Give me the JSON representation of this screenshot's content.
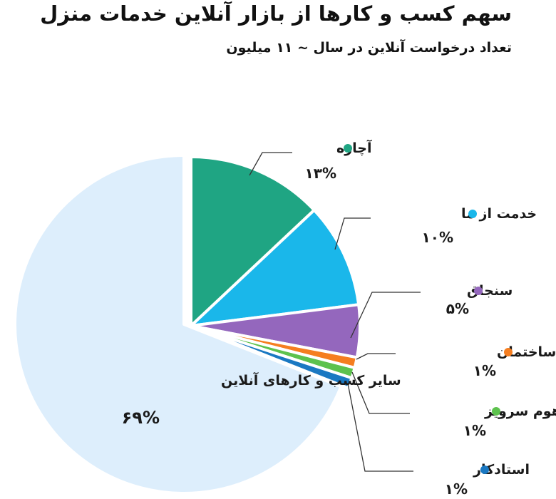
{
  "chart_data": {
    "type": "pie",
    "title": "سهم کسب و کارها از بازار آنلاین خدمات منزل",
    "subtitle": "تعداد درخواست آنلاین در سال ~ ۱۱ میلیون",
    "slices": [
      {
        "label": "آچاره",
        "value": 13,
        "display": "۱۳%",
        "color": "#1fa583",
        "exploded": true
      },
      {
        "label": "خدمت از ما",
        "value": 10,
        "display": "۱۰%",
        "color": "#1ab7ea",
        "exploded": true
      },
      {
        "label": "سنجاق",
        "value": 5,
        "display": "۵%",
        "color": "#9467bd",
        "exploded": true
      },
      {
        "label": "سلام ساختمان",
        "value": 1,
        "display": "۱%",
        "color": "#f57e20",
        "exploded": true
      },
      {
        "label": "هوم سرویز",
        "value": 1,
        "display": "۱%",
        "color": "#5dc24d",
        "exploded": true
      },
      {
        "label": "استادکار",
        "value": 1,
        "display": "۱%",
        "color": "#1a78c2",
        "exploded": true
      },
      {
        "label": "سایر کسب و کارهای آنلاین",
        "value": 69,
        "display": "۶۹%",
        "color": "#ddeefc",
        "exploded": false
      }
    ]
  }
}
